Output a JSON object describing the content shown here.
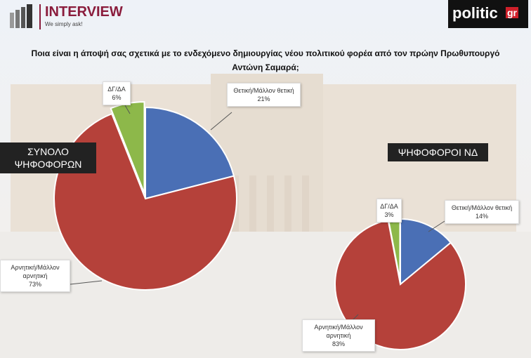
{
  "header": {
    "logo_left": "INTERVIEW",
    "tagline": "We simply ask!",
    "logo_right": "politic",
    "logo_right_suffix": "gr",
    "question": "Ποια είναι η άποψή σας σχετικά με το ενδεχόμενο δημιουργίας νέου πολιτικού φορέα από τον πρώην Πρωθυπουργό Αντώνη Σαμαρά;"
  },
  "chart_data": [
    {
      "type": "pie",
      "title": "ΣΥΝΟΛΟ ΨΗΦΟΦΟΡΩΝ",
      "categories": [
        "Θετική/Μάλλον θετική",
        "Αρνητική/Μάλλον αρνητική",
        "ΔΓ/ΔΑ"
      ],
      "values": [
        21,
        73,
        6
      ],
      "value_labels": [
        "21%",
        "73%",
        "6%"
      ],
      "colors": [
        "#4a6fb5",
        "#b5413a",
        "#8db84a"
      ]
    },
    {
      "type": "pie",
      "title": "ΨΗΦΟΦΟΡΟΙ ΝΔ",
      "categories": [
        "Θετική/Μάλλον θετική",
        "Αρνητική/Μάλλον αρνητική",
        "ΔΓ/ΔΑ"
      ],
      "values": [
        14,
        83,
        3
      ],
      "value_labels": [
        "14%",
        "83%",
        "3%"
      ],
      "colors": [
        "#4a6fb5",
        "#b5413a",
        "#8db84a"
      ]
    }
  ]
}
